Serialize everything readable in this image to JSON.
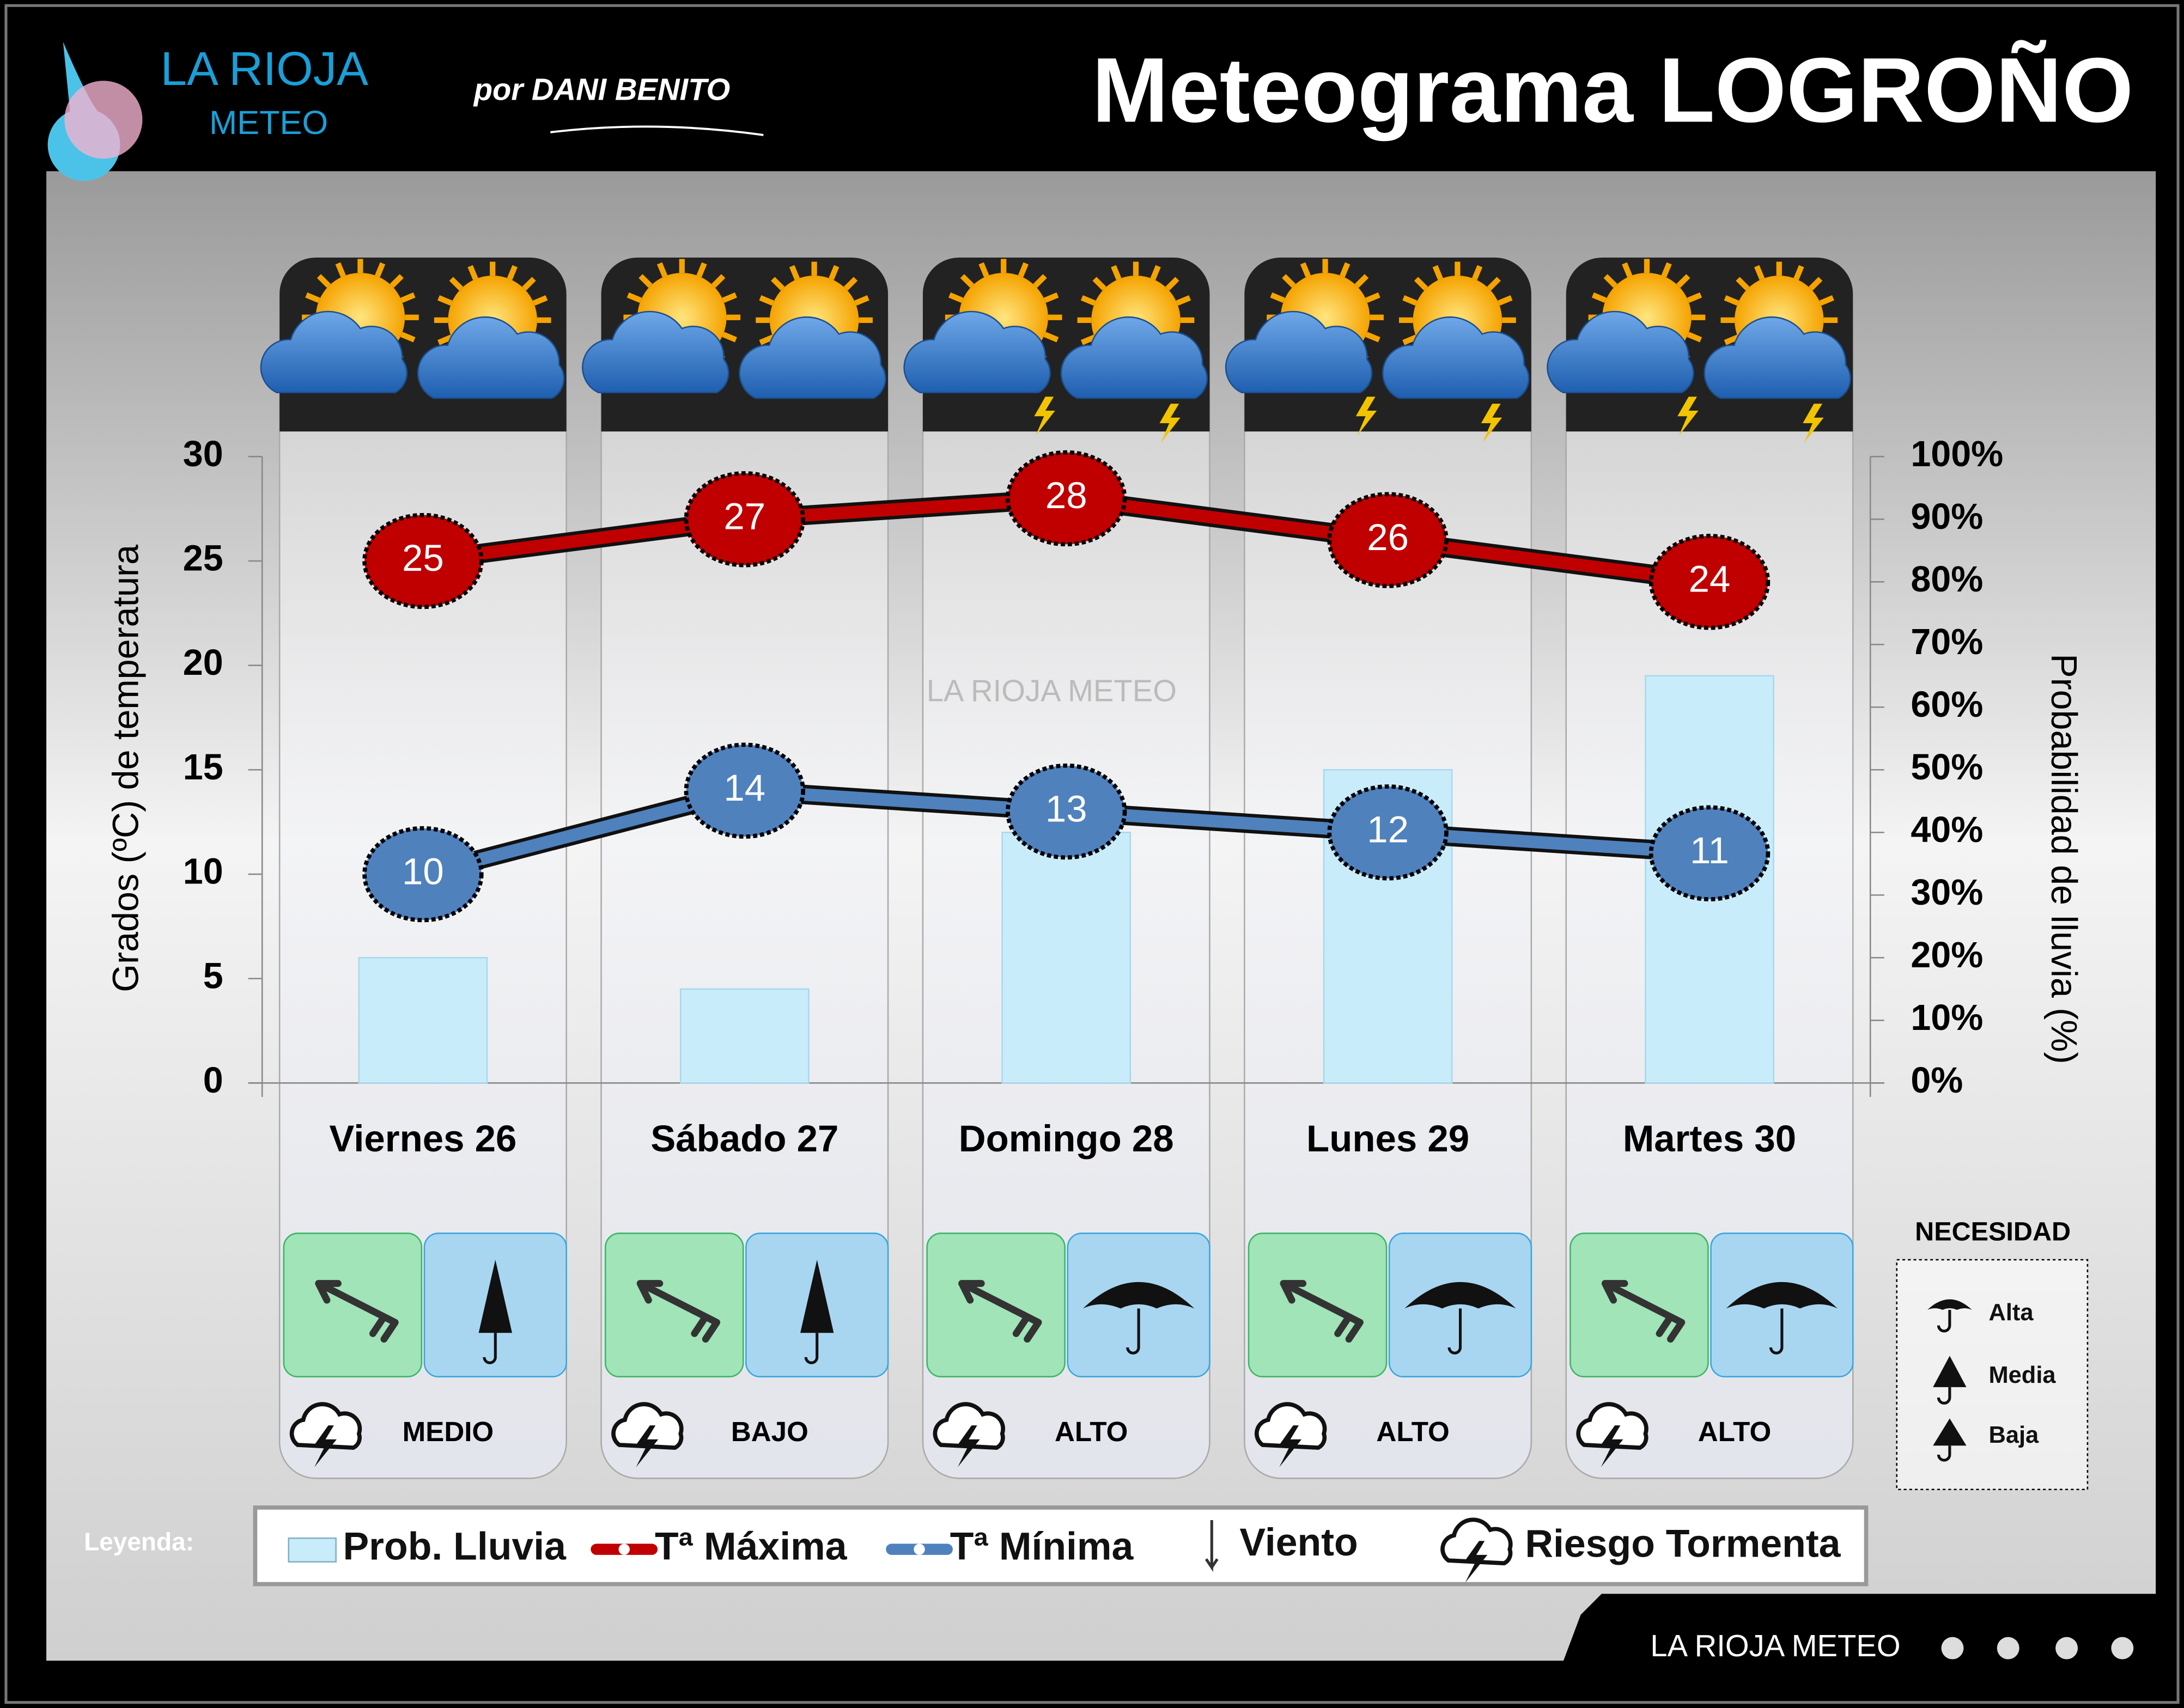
{
  "header": {
    "logo_top": "LA RIOJA",
    "logo_bottom": "METEO",
    "author": "por DANI BENITO",
    "title": "Meteograma LOGROÑO"
  },
  "chart_data": {
    "type": "combo",
    "categories": [
      "Viernes 26",
      "Sábado 27",
      "Domingo 28",
      "Lunes 29",
      "Martes 30"
    ],
    "series": [
      {
        "name": "Prob. Lluvia",
        "kind": "bar",
        "axis": "y2",
        "color": "#c9ecfa",
        "values": [
          20,
          15,
          40,
          50,
          65
        ]
      },
      {
        "name": "Tª Máxima",
        "kind": "line",
        "color": "#c00000",
        "values": [
          25,
          27,
          28,
          26,
          24
        ]
      },
      {
        "name": "Tª Mínima",
        "kind": "line",
        "color": "#4f81bd",
        "values": [
          10,
          14,
          13,
          12,
          11
        ]
      }
    ],
    "ylabel": "Grados (ºC) de temperatura",
    "y2label": "Probabilidad de lluvia (%)",
    "ylim": [
      0,
      30
    ],
    "yticks": [
      0,
      5,
      10,
      15,
      20,
      25,
      30
    ],
    "y2lim": [
      0,
      100
    ],
    "y2ticks": [
      {
        "value": 0,
        "label": "0%"
      },
      {
        "value": 10,
        "label": "10%"
      },
      {
        "value": 20,
        "label": "20%"
      },
      {
        "value": 30,
        "label": "30%"
      },
      {
        "value": 40,
        "label": "40%"
      },
      {
        "value": 50,
        "label": "50%"
      },
      {
        "value": 60,
        "label": "60%"
      },
      {
        "value": 70,
        "label": "70%"
      },
      {
        "value": 80,
        "label": "80%"
      },
      {
        "value": 90,
        "label": "90%"
      },
      {
        "value": 100,
        "label": "100%"
      }
    ],
    "grid": false,
    "storm_risk": [
      "MEDIO",
      "BAJO",
      "ALTO",
      "ALTO",
      "ALTO"
    ],
    "legend_label": "Leyenda:",
    "legend_extra": [
      "Viento",
      "Riesgo Tormenta"
    ],
    "watermark": "LA RIOJA METEO"
  },
  "necesidad": {
    "title": "NECESIDAD",
    "levels": [
      "Alta",
      "Media",
      "Baja"
    ]
  },
  "footer": {
    "brand": "LA RIOJA METEO"
  }
}
